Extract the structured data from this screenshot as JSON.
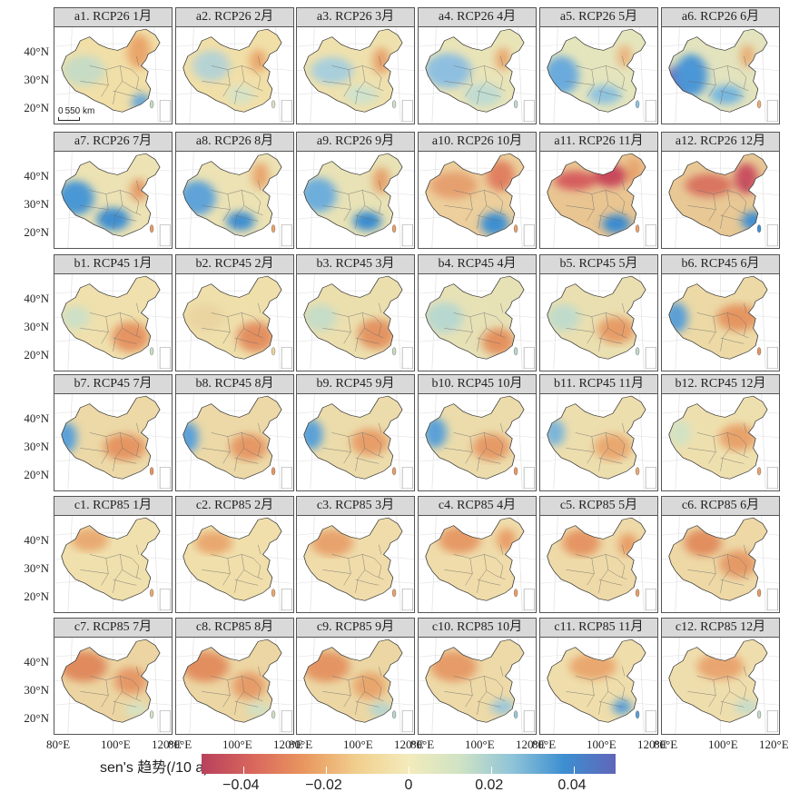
{
  "panels": [
    {
      "label": "a1. RCP26 1月",
      "pattern": {
        "base": "#f1dfa8",
        "blobs": [
          [
            "#e9a56a",
            0.72,
            0.25,
            0.1,
            0.18
          ],
          [
            "#6aa8d6",
            0.74,
            0.78,
            0.08,
            0.1
          ],
          [
            "#c7dcc5",
            0.25,
            0.45,
            0.18,
            0.16
          ]
        ]
      }
    },
    {
      "label": "a2. RCP26 2月",
      "pattern": {
        "base": "#f1dfa8",
        "blobs": [
          [
            "#e9a56a",
            0.7,
            0.35,
            0.07,
            0.12
          ],
          [
            "#b6d3d4",
            0.3,
            0.4,
            0.16,
            0.16
          ],
          [
            "#d7e3c6",
            0.55,
            0.7,
            0.12,
            0.1
          ]
        ]
      }
    },
    {
      "label": "a3. RCP26 3月",
      "pattern": {
        "base": "#eee1ae",
        "blobs": [
          [
            "#e6a06a",
            0.72,
            0.35,
            0.07,
            0.14
          ],
          [
            "#a9cfdc",
            0.3,
            0.45,
            0.18,
            0.14
          ],
          [
            "#cfe2cc",
            0.55,
            0.7,
            0.14,
            0.1
          ]
        ]
      }
    },
    {
      "label": "a4. RCP26 4月",
      "pattern": {
        "base": "#e9e4b8",
        "blobs": [
          [
            "#e8a56c",
            0.72,
            0.33,
            0.06,
            0.12
          ],
          [
            "#8fbfe0",
            0.25,
            0.45,
            0.2,
            0.18
          ],
          [
            "#bfdbd2",
            0.55,
            0.7,
            0.16,
            0.12
          ]
        ]
      }
    },
    {
      "label": "a5. RCP26 5月",
      "pattern": {
        "base": "#e5e5bd",
        "blobs": [
          [
            "#eab37d",
            0.72,
            0.3,
            0.06,
            0.12
          ],
          [
            "#6aaadc",
            0.18,
            0.5,
            0.15,
            0.2
          ],
          [
            "#8fc3df",
            0.55,
            0.7,
            0.14,
            0.1
          ]
        ]
      }
    },
    {
      "label": "a6. RCP26 6月",
      "pattern": {
        "base": "#e3e3be",
        "blobs": [
          [
            "#6b6fbd",
            0.12,
            0.6,
            0.1,
            0.2
          ],
          [
            "#4b96d6",
            0.25,
            0.5,
            0.14,
            0.22
          ],
          [
            "#76b6de",
            0.55,
            0.7,
            0.14,
            0.1
          ],
          [
            "#e9ad73",
            0.73,
            0.3,
            0.06,
            0.12
          ]
        ]
      }
    },
    {
      "label": "a7. RCP26 7月",
      "pattern": {
        "base": "#ece2b4",
        "blobs": [
          [
            "#4a97d4",
            0.18,
            0.48,
            0.16,
            0.18
          ],
          [
            "#3f8fd0",
            0.5,
            0.7,
            0.14,
            0.12
          ],
          [
            "#e59a66",
            0.72,
            0.4,
            0.07,
            0.12
          ]
        ]
      }
    },
    {
      "label": "a8. RCP26 8月",
      "pattern": {
        "base": "#ece2b4",
        "blobs": [
          [
            "#5ea3d8",
            0.18,
            0.48,
            0.16,
            0.18
          ],
          [
            "#3f8fd0",
            0.55,
            0.72,
            0.12,
            0.1
          ],
          [
            "#e8a46c",
            0.72,
            0.25,
            0.07,
            0.14
          ]
        ]
      }
    },
    {
      "label": "a9. RCP26 9月",
      "pattern": {
        "base": "#e8e2b6",
        "blobs": [
          [
            "#6eaedb",
            0.18,
            0.45,
            0.16,
            0.18
          ],
          [
            "#3b8ccf",
            0.6,
            0.72,
            0.12,
            0.1
          ],
          [
            "#e6a06b",
            0.72,
            0.3,
            0.07,
            0.14
          ]
        ]
      }
    },
    {
      "label": "a10. RCP26 10月",
      "pattern": {
        "base": "#eccf9c",
        "blobs": [
          [
            "#e08060",
            0.7,
            0.25,
            0.12,
            0.16
          ],
          [
            "#3d8fd2",
            0.65,
            0.75,
            0.12,
            0.12
          ],
          [
            "#e6a070",
            0.3,
            0.35,
            0.2,
            0.14
          ]
        ]
      }
    },
    {
      "label": "a11. RCP26 11月",
      "pattern": {
        "base": "#e9c592",
        "blobs": [
          [
            "#c94a5c",
            0.6,
            0.25,
            0.14,
            0.12
          ],
          [
            "#d65e5e",
            0.3,
            0.3,
            0.18,
            0.1
          ],
          [
            "#3a8bd0",
            0.65,
            0.75,
            0.12,
            0.1
          ],
          [
            "#e8a36d",
            0.8,
            0.2,
            0.06,
            0.14
          ]
        ]
      }
    },
    {
      "label": "a12. RCP26 12月",
      "pattern": {
        "base": "#e8c895",
        "blobs": [
          [
            "#c9505e",
            0.72,
            0.28,
            0.1,
            0.16
          ],
          [
            "#d97560",
            0.4,
            0.35,
            0.2,
            0.12
          ],
          [
            "#3f8fd2",
            0.78,
            0.72,
            0.1,
            0.1
          ]
        ]
      }
    },
    {
      "label": "b1. RCP45 1月",
      "pattern": {
        "base": "#efe0ad",
        "blobs": [
          [
            "#e59462",
            0.65,
            0.65,
            0.16,
            0.16
          ],
          [
            "#cde0c6",
            0.18,
            0.45,
            0.12,
            0.12
          ]
        ]
      }
    },
    {
      "label": "b2. RCP45 2月",
      "pattern": {
        "base": "#efdfab",
        "blobs": [
          [
            "#e38f60",
            0.68,
            0.65,
            0.16,
            0.16
          ],
          [
            "#ead4a0",
            0.25,
            0.45,
            0.16,
            0.14
          ]
        ]
      }
    },
    {
      "label": "b3. RCP45 3月",
      "pattern": {
        "base": "#ecdfae",
        "blobs": [
          [
            "#e39462",
            0.68,
            0.62,
            0.16,
            0.16
          ],
          [
            "#c6ddc7",
            0.2,
            0.45,
            0.14,
            0.14
          ]
        ]
      }
    },
    {
      "label": "b4. RCP45 4月",
      "pattern": {
        "base": "#e7e1b6",
        "blobs": [
          [
            "#e4925f",
            0.68,
            0.7,
            0.14,
            0.14
          ],
          [
            "#b8d8cf",
            0.22,
            0.45,
            0.16,
            0.16
          ]
        ]
      }
    },
    {
      "label": "b5. RCP45 5月",
      "pattern": {
        "base": "#eadfb0",
        "blobs": [
          [
            "#e79c66",
            0.65,
            0.58,
            0.16,
            0.14
          ],
          [
            "#c0dbcb",
            0.2,
            0.45,
            0.14,
            0.14
          ]
        ]
      }
    },
    {
      "label": "b6. RCP45 6月",
      "pattern": {
        "base": "#ecd9a6",
        "blobs": [
          [
            "#5a9fd6",
            0.12,
            0.45,
            0.1,
            0.16
          ],
          [
            "#e59561",
            0.65,
            0.45,
            0.18,
            0.14
          ]
        ]
      }
    },
    {
      "label": "b7. RCP45 7月",
      "pattern": {
        "base": "#ecd9a7",
        "blobs": [
          [
            "#5aa0d8",
            0.1,
            0.45,
            0.09,
            0.16
          ],
          [
            "#e59562",
            0.6,
            0.55,
            0.18,
            0.14
          ]
        ]
      }
    },
    {
      "label": "b8. RCP45 8月",
      "pattern": {
        "base": "#ecd9a7",
        "blobs": [
          [
            "#5aa0d8",
            0.1,
            0.45,
            0.09,
            0.16
          ],
          [
            "#e59865",
            0.62,
            0.55,
            0.16,
            0.14
          ]
        ]
      }
    },
    {
      "label": "b9. RCP45 9月",
      "pattern": {
        "base": "#ecdcab",
        "blobs": [
          [
            "#5aa0d8",
            0.12,
            0.42,
            0.1,
            0.16
          ],
          [
            "#e79e68",
            0.62,
            0.5,
            0.16,
            0.14
          ]
        ]
      }
    },
    {
      "label": "b10. RCP45 10月",
      "pattern": {
        "base": "#ecdcab",
        "blobs": [
          [
            "#5aa0d8",
            0.14,
            0.4,
            0.1,
            0.16
          ],
          [
            "#e69a66",
            0.62,
            0.55,
            0.16,
            0.14
          ]
        ]
      }
    },
    {
      "label": "b11. RCP45 11月",
      "pattern": {
        "base": "#eddeae",
        "blobs": [
          [
            "#7cb5da",
            0.12,
            0.4,
            0.09,
            0.14
          ],
          [
            "#e9a870",
            0.62,
            0.55,
            0.16,
            0.14
          ]
        ]
      }
    },
    {
      "label": "b12. RCP45 12月",
      "pattern": {
        "base": "#eee0ae",
        "blobs": [
          [
            "#d3e2c4",
            0.15,
            0.4,
            0.1,
            0.14
          ],
          [
            "#e8a26b",
            0.65,
            0.45,
            0.16,
            0.14
          ]
        ]
      }
    },
    {
      "label": "c1. RCP85 1月",
      "pattern": {
        "base": "#f0e0ad",
        "blobs": [
          [
            "#e9aa72",
            0.3,
            0.25,
            0.16,
            0.12
          ]
        ]
      }
    },
    {
      "label": "c2. RCP85 2月",
      "pattern": {
        "base": "#f0dfab",
        "blobs": [
          [
            "#e9a870",
            0.32,
            0.28,
            0.16,
            0.12
          ]
        ]
      }
    },
    {
      "label": "c3. RCP85 3月",
      "pattern": {
        "base": "#efdcaa",
        "blobs": [
          [
            "#e8a36d",
            0.3,
            0.28,
            0.18,
            0.14
          ]
        ]
      }
    },
    {
      "label": "c4. RCP85 4月",
      "pattern": {
        "base": "#efdcaa",
        "blobs": [
          [
            "#e69a66",
            0.35,
            0.25,
            0.18,
            0.14
          ],
          [
            "#e89e68",
            0.75,
            0.25,
            0.08,
            0.12
          ]
        ]
      }
    },
    {
      "label": "c5. RCP85 5月",
      "pattern": {
        "base": "#eedaa8",
        "blobs": [
          [
            "#e59563",
            0.35,
            0.28,
            0.16,
            0.14
          ],
          [
            "#e89e68",
            0.75,
            0.3,
            0.08,
            0.12
          ]
        ]
      }
    },
    {
      "label": "c6. RCP85 6月",
      "pattern": {
        "base": "#edd8a6",
        "blobs": [
          [
            "#e28e5f",
            0.35,
            0.28,
            0.16,
            0.14
          ],
          [
            "#e59a66",
            0.65,
            0.5,
            0.16,
            0.14
          ]
        ]
      }
    },
    {
      "label": "c7. RCP85 7月",
      "pattern": {
        "base": "#ecd5a2",
        "blobs": [
          [
            "#e08a5d",
            0.25,
            0.3,
            0.2,
            0.16
          ],
          [
            "#e59866",
            0.65,
            0.45,
            0.14,
            0.14
          ],
          [
            "#d6e2c3",
            0.7,
            0.75,
            0.1,
            0.08
          ]
        ]
      }
    },
    {
      "label": "c8. RCP85 8月",
      "pattern": {
        "base": "#ecd6a3",
        "blobs": [
          [
            "#e28e5f",
            0.25,
            0.3,
            0.2,
            0.16
          ],
          [
            "#e69b67",
            0.62,
            0.5,
            0.14,
            0.14
          ],
          [
            "#d1e0c4",
            0.7,
            0.75,
            0.1,
            0.08
          ]
        ]
      }
    },
    {
      "label": "c9. RCP85 9月",
      "pattern": {
        "base": "#ecd7a4",
        "blobs": [
          [
            "#e49462",
            0.25,
            0.3,
            0.2,
            0.16
          ],
          [
            "#e8a56c",
            0.62,
            0.5,
            0.14,
            0.14
          ],
          [
            "#b7d5cf",
            0.72,
            0.75,
            0.1,
            0.08
          ]
        ]
      }
    },
    {
      "label": "c10. RCP85 10月",
      "pattern": {
        "base": "#eddaa8",
        "blobs": [
          [
            "#e69b67",
            0.3,
            0.3,
            0.2,
            0.16
          ],
          [
            "#9cc7da",
            0.72,
            0.72,
            0.1,
            0.08
          ]
        ]
      }
    },
    {
      "label": "c11. RCP85 11月",
      "pattern": {
        "base": "#efdeac",
        "blobs": [
          [
            "#e9a870",
            0.45,
            0.3,
            0.2,
            0.14
          ],
          [
            "#5a9fd6",
            0.7,
            0.72,
            0.08,
            0.08
          ]
        ]
      }
    },
    {
      "label": "c12. RCP85 12月",
      "pattern": {
        "base": "#efdead",
        "blobs": [
          [
            "#e9a56f",
            0.5,
            0.3,
            0.2,
            0.14
          ],
          [
            "#c6dcc9",
            0.72,
            0.72,
            0.1,
            0.08
          ]
        ]
      }
    }
  ],
  "lat_labels": [
    "40°N",
    "30°N",
    "20°N"
  ],
  "lon_labels": [
    "80°E",
    "100°E",
    "120°E"
  ],
  "scale_bar": {
    "zero": "0",
    "distance": "550 km"
  },
  "legend": {
    "title": "sen's 趋势(/10 a)",
    "colors": [
      "#b8415c",
      "#d9675d",
      "#e9985f",
      "#f1cf8e",
      "#f3ebbb",
      "#cfe3c4",
      "#8fc4d8",
      "#3d8fd1",
      "#6066b8"
    ],
    "ticks": [
      "−0.04",
      "−0.02",
      "0",
      "0.02",
      "0.04"
    ]
  }
}
